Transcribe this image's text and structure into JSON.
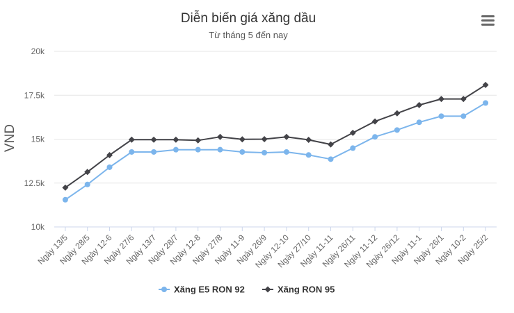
{
  "chart_data": {
    "type": "line",
    "title": "Diễn biến giá xăng dầu",
    "subtitle": "Từ tháng 5 đến nay",
    "ylabel": "VND",
    "xlabel": "",
    "ylim": [
      10000,
      20000
    ],
    "yticks": [
      {
        "value": 10000,
        "label": "10k"
      },
      {
        "value": 12500,
        "label": "12.5k"
      },
      {
        "value": 15000,
        "label": "15k"
      },
      {
        "value": 17500,
        "label": "17.5k"
      },
      {
        "value": 20000,
        "label": "20k"
      }
    ],
    "grid": true,
    "legend_position": "bottom",
    "categories": [
      "Ngày 13/5",
      "Ngày 28/5",
      "Ngày 12-6",
      "Ngày 27/6",
      "Ngày 13/7",
      "Ngày 28/7",
      "Ngày 12-8",
      "Ngày 27/8",
      "Ngày 11-9",
      "Ngày 26/9",
      "Ngày 12-10",
      "Ngày 27/10",
      "Ngày 11-11",
      "Ngày 26/11",
      "Ngày 11-12",
      "Ngày 26/12",
      "Ngày 11-1",
      "Ngày 26/1",
      "Ngày 10-2",
      "Ngày 25/2"
    ],
    "series": [
      {
        "name": "Xăng E5 RON 92",
        "color": "#7cb5ec",
        "marker": "circle",
        "values": [
          11550,
          12420,
          13400,
          14270,
          14270,
          14400,
          14400,
          14400,
          14270,
          14230,
          14270,
          14100,
          13860,
          14490,
          15130,
          15520,
          15960,
          16310,
          16310,
          17060
        ]
      },
      {
        "name": "Xăng RON 95",
        "color": "#434348",
        "marker": "diamond",
        "values": [
          12240,
          13130,
          14090,
          14970,
          14970,
          14970,
          14930,
          15130,
          14990,
          15000,
          15130,
          14960,
          14700,
          15360,
          16010,
          16470,
          16940,
          17290,
          17290,
          18090
        ]
      }
    ]
  },
  "icons": {
    "menu": "menu-icon"
  }
}
